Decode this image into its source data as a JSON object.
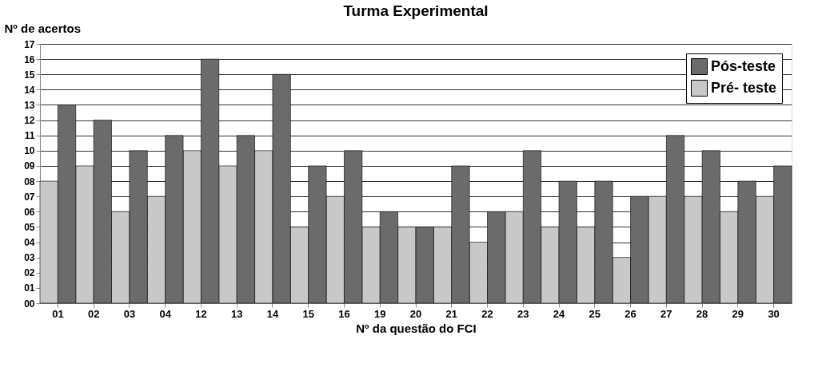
{
  "chart_data": {
    "type": "bar",
    "title": "Turma Experimental",
    "xlabel": "Nº da questão do FCI",
    "ylabel": "Nº de acertos",
    "categories": [
      "01",
      "02",
      "03",
      "04",
      "12",
      "13",
      "14",
      "15",
      "16",
      "19",
      "20",
      "21",
      "22",
      "23",
      "24",
      "25",
      "26",
      "27",
      "28",
      "29",
      "30"
    ],
    "series": [
      {
        "name": "Pré- teste",
        "color": "#c8c8c8",
        "values": [
          8,
          9,
          6,
          7,
          10,
          9,
          10,
          5,
          7,
          5,
          5,
          5,
          4,
          6,
          5,
          5,
          3,
          7,
          7,
          6,
          7
        ]
      },
      {
        "name": "Pós-teste",
        "color": "#6b6b6b",
        "values": [
          13,
          12,
          10,
          11,
          16,
          11,
          15,
          9,
          10,
          6,
          5,
          9,
          6,
          10,
          8,
          8,
          7,
          11,
          10,
          8,
          9
        ]
      }
    ],
    "ylim": [
      0,
      17
    ],
    "yticks": [
      {
        "value": 0,
        "label": "00"
      },
      {
        "value": 1,
        "label": "01"
      },
      {
        "value": 2,
        "label": "02"
      },
      {
        "value": 3,
        "label": "03"
      },
      {
        "value": 4,
        "label": "04"
      },
      {
        "value": 5,
        "label": "05"
      },
      {
        "value": 6,
        "label": "06"
      },
      {
        "value": 7,
        "label": "07"
      },
      {
        "value": 8,
        "label": "08"
      },
      {
        "value": 9,
        "label": "09"
      },
      {
        "value": 10,
        "label": "10"
      },
      {
        "value": 11,
        "label": "11"
      },
      {
        "value": 12,
        "label": "12"
      },
      {
        "value": 13,
        "label": "13"
      },
      {
        "value": 14,
        "label": "14"
      },
      {
        "value": 15,
        "label": "15"
      },
      {
        "value": 16,
        "label": "16"
      },
      {
        "value": 17,
        "label": "17"
      }
    ],
    "grid": "y",
    "legend": "top right"
  }
}
